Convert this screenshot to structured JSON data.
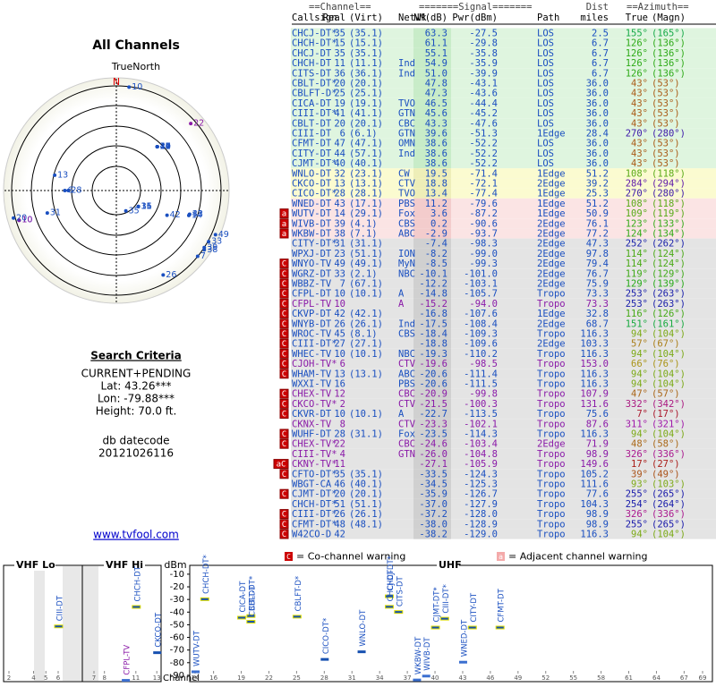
{
  "left": {
    "title": "All Channels",
    "compass": "TrueNorth",
    "north": "N",
    "criteria_title": "Search Criteria",
    "criteria": [
      "CURRENT+PENDING",
      "Lat: 43.26***",
      "Lon: -79.88***",
      "Height: 70.0 ft."
    ],
    "datecode_label": "db datecode",
    "datecode": "20121026116",
    "link": "www.tvfool.com"
  },
  "table": {
    "header_top": [
      "==Channel==",
      "=======Signal=======",
      "Dist",
      "==Azimuth=="
    ],
    "header": [
      "Callsign",
      "Real",
      "(Virt)",
      "Netwk",
      "NM(dB)",
      "Pwr(dBm)",
      "Path",
      "miles",
      "True",
      "(Magn)"
    ],
    "rows": [
      {
        "cells": [
          "CHCJ-DT*",
          "35",
          "(35.1)",
          "",
          "63.3",
          "-27.5",
          "LOS",
          "2.5",
          "155°",
          "(165°)"
        ],
        "zone": "green",
        "analog": false,
        "warn": ""
      },
      {
        "cells": [
          "CHCH-DT*",
          "15",
          "(15.1)",
          "",
          "61.1",
          "-29.8",
          "LOS",
          "6.7",
          "126°",
          "(136°)"
        ],
        "zone": "green",
        "analog": false,
        "warn": ""
      },
      {
        "cells": [
          "CHCJ-DT",
          "35",
          "(35.1)",
          "",
          "55.1",
          "-35.8",
          "LOS",
          "6.7",
          "126°",
          "(136°)"
        ],
        "zone": "green",
        "analog": false,
        "warn": ""
      },
      {
        "cells": [
          "CHCH-DT",
          "11",
          "(11.1)",
          "Ind",
          "54.9",
          "-35.9",
          "LOS",
          "6.7",
          "126°",
          "(136°)"
        ],
        "zone": "green",
        "analog": false,
        "warn": ""
      },
      {
        "cells": [
          "CITS-DT",
          "36",
          "(36.1)",
          "Ind",
          "51.0",
          "-39.9",
          "LOS",
          "6.7",
          "126°",
          "(136°)"
        ],
        "zone": "green",
        "analog": false,
        "warn": ""
      },
      {
        "cells": [
          "CBLT-DT*",
          "20",
          "(20.1)",
          "",
          "47.8",
          "-43.1",
          "LOS",
          "36.0",
          "43°",
          "(53°)"
        ],
        "zone": "green",
        "analog": false,
        "warn": ""
      },
      {
        "cells": [
          "CBLFT-D*",
          "25",
          "(25.1)",
          "",
          "47.3",
          "-43.6",
          "LOS",
          "36.0",
          "43°",
          "(53°)"
        ],
        "zone": "green",
        "analog": false,
        "warn": ""
      },
      {
        "cells": [
          "CICA-DT",
          "19",
          "(19.1)",
          "TVO",
          "46.5",
          "-44.4",
          "LOS",
          "36.0",
          "43°",
          "(53°)"
        ],
        "zone": "green",
        "analog": false,
        "warn": ""
      },
      {
        "cells": [
          "CIII-DT*",
          "41",
          "(41.1)",
          "GTN",
          "45.6",
          "-45.2",
          "LOS",
          "36.0",
          "43°",
          "(53°)"
        ],
        "zone": "green",
        "analog": false,
        "warn": ""
      },
      {
        "cells": [
          "CBLT-DT",
          "20",
          "(20.1)",
          "CBC",
          "43.3",
          "-47.6",
          "LOS",
          "36.0",
          "43°",
          "(53°)"
        ],
        "zone": "green",
        "analog": false,
        "warn": ""
      },
      {
        "cells": [
          "CIII-DT",
          "6",
          "(6.1)",
          "GTN",
          "39.6",
          "-51.3",
          "1Edge",
          "28.4",
          "270°",
          "(280°)"
        ],
        "zone": "green",
        "analog": false,
        "warn": ""
      },
      {
        "cells": [
          "CFMT-DT",
          "47",
          "(47.1)",
          "OMN",
          "38.6",
          "-52.2",
          "LOS",
          "36.0",
          "43°",
          "(53°)"
        ],
        "zone": "green",
        "analog": false,
        "warn": ""
      },
      {
        "cells": [
          "CITY-DT",
          "44",
          "(57.1)",
          "Ind",
          "38.6",
          "-52.2",
          "LOS",
          "36.0",
          "43°",
          "(53°)"
        ],
        "zone": "green",
        "analog": false,
        "warn": ""
      },
      {
        "cells": [
          "CJMT-DT*",
          "40",
          "(40.1)",
          "",
          "38.6",
          "-52.2",
          "LOS",
          "36.0",
          "43°",
          "(53°)"
        ],
        "zone": "green",
        "analog": false,
        "warn": ""
      },
      {
        "cells": [
          "WNLO-DT",
          "32",
          "(23.1)",
          "CW",
          "19.5",
          "-71.4",
          "1Edge",
          "51.2",
          "108°",
          "(118°)"
        ],
        "zone": "yellow",
        "analog": false,
        "warn": ""
      },
      {
        "cells": [
          "CKCO-DT",
          "13",
          "(13.1)",
          "CTV",
          "18.8",
          "-72.1",
          "2Edge",
          "39.2",
          "284°",
          "(294°)"
        ],
        "zone": "yellow",
        "analog": false,
        "warn": ""
      },
      {
        "cells": [
          "CICO-DT*",
          "28",
          "(28.1)",
          "TVO",
          "13.4",
          "-77.4",
          "1Edge",
          "25.3",
          "270°",
          "(280°)"
        ],
        "zone": "yellow",
        "analog": false,
        "warn": ""
      },
      {
        "cells": [
          "WNED-DT",
          "43",
          "(17.1)",
          "PBS",
          "11.2",
          "-79.6",
          "1Edge",
          "51.2",
          "108°",
          "(118°)"
        ],
        "zone": "pink",
        "analog": false,
        "warn": ""
      },
      {
        "cells": [
          "WUTV-DT",
          "14",
          "(29.1)",
          "Fox",
          "3.6",
          "-87.2",
          "1Edge",
          "50.9",
          "109°",
          "(119°)"
        ],
        "zone": "pink",
        "analog": false,
        "warn": "a"
      },
      {
        "cells": [
          "WIVB-DT",
          "39",
          "(4.1)",
          "CBS",
          "0.2",
          "-90.6",
          "2Edge",
          "76.1",
          "123°",
          "(133°)"
        ],
        "zone": "pink",
        "analog": false,
        "warn": "a"
      },
      {
        "cells": [
          "WKBW-DT",
          "38",
          "(7.1)",
          "ABC",
          "-2.9",
          "-93.7",
          "2Edge",
          "77.2",
          "124°",
          "(134°)"
        ],
        "zone": "pink",
        "analog": false,
        "warn": "a"
      },
      {
        "cells": [
          "CITY-DT*",
          "31",
          "(31.1)",
          "",
          "-7.4",
          "-98.3",
          "2Edge",
          "47.3",
          "252°",
          "(262°)"
        ],
        "zone": "gray",
        "analog": false,
        "warn": ""
      },
      {
        "cells": [
          "WPXJ-DT",
          "23",
          "(51.1)",
          "ION",
          "-8.2",
          "-99.0",
          "2Edge",
          "97.8",
          "114°",
          "(124°)"
        ],
        "zone": "gray",
        "analog": false,
        "warn": ""
      },
      {
        "cells": [
          "WNYO-TV",
          "49",
          "(49.1)",
          "MyN",
          "-8.5",
          "-99.3",
          "2Edge",
          "79.4",
          "114°",
          "(124°)"
        ],
        "zone": "gray",
        "analog": false,
        "warn": "C"
      },
      {
        "cells": [
          "WGRZ-DT",
          "33",
          "(2.1)",
          "NBC",
          "-10.1",
          "-101.0",
          "2Edge",
          "76.7",
          "119°",
          "(129°)"
        ],
        "zone": "gray",
        "analog": false,
        "warn": "C"
      },
      {
        "cells": [
          "WBBZ-TV",
          "7",
          "(67.1)",
          "",
          "-12.2",
          "-103.1",
          "2Edge",
          "75.9",
          "129°",
          "(139°)"
        ],
        "zone": "gray",
        "analog": false,
        "warn": "C"
      },
      {
        "cells": [
          "CFPL-DT",
          "10",
          "(10.1)",
          "A",
          "-14.8",
          "-105.7",
          "Tropo",
          "73.3",
          "253°",
          "(263°)"
        ],
        "zone": "gray",
        "analog": false,
        "warn": "C"
      },
      {
        "cells": [
          "CFPL-TV",
          "10",
          "",
          "A",
          "-15.2",
          "-94.0",
          "Tropo",
          "73.3",
          "253°",
          "(263°)"
        ],
        "zone": "gray",
        "analog": true,
        "warn": "C"
      },
      {
        "cells": [
          "CKVP-DT",
          "42",
          "(42.1)",
          "",
          "-16.8",
          "-107.6",
          "1Edge",
          "32.8",
          "116°",
          "(126°)"
        ],
        "zone": "gray",
        "analog": false,
        "warn": "C"
      },
      {
        "cells": [
          "WNYB-DT",
          "26",
          "(26.1)",
          "Ind",
          "-17.5",
          "-108.4",
          "2Edge",
          "68.7",
          "151°",
          "(161°)"
        ],
        "zone": "gray",
        "analog": false,
        "warn": "C"
      },
      {
        "cells": [
          "WROC-TV",
          "45",
          "(8.1)",
          "CBS",
          "-18.4",
          "-109.3",
          "Tropo",
          "116.3",
          "94°",
          "(104°)"
        ],
        "zone": "gray",
        "analog": false,
        "warn": "C"
      },
      {
        "cells": [
          "CIII-DT*",
          "27",
          "(27.1)",
          "",
          "-18.8",
          "-109.6",
          "2Edge",
          "103.3",
          "57°",
          "(67°)"
        ],
        "zone": "gray",
        "analog": false,
        "warn": "C"
      },
      {
        "cells": [
          "WHEC-TV",
          "10",
          "(10.1)",
          "NBC",
          "-19.3",
          "-110.2",
          "Tropo",
          "116.3",
          "94°",
          "(104°)"
        ],
        "zone": "gray",
        "analog": false,
        "warn": "C"
      },
      {
        "cells": [
          "CJOH-TV*",
          "6",
          "",
          "CTV",
          "-19.6",
          "-98.5",
          "Tropo",
          "153.0",
          "66°",
          "(76°)"
        ],
        "zone": "gray",
        "analog": true,
        "warn": "C"
      },
      {
        "cells": [
          "WHAM-TV",
          "13",
          "(13.1)",
          "ABC",
          "-20.6",
          "-111.4",
          "Tropo",
          "116.3",
          "94°",
          "(104°)"
        ],
        "zone": "gray",
        "analog": false,
        "warn": "C"
      },
      {
        "cells": [
          "WXXI-TV",
          "16",
          "",
          "PBS",
          "-20.6",
          "-111.5",
          "Tropo",
          "116.3",
          "94°",
          "(104°)"
        ],
        "zone": "gray",
        "analog": false,
        "warn": ""
      },
      {
        "cells": [
          "CHEX-TV",
          "12",
          "",
          "CBC",
          "-20.9",
          "-99.8",
          "Tropo",
          "107.9",
          "47°",
          "(57°)"
        ],
        "zone": "gray",
        "analog": true,
        "warn": "C"
      },
      {
        "cells": [
          "CKCO-TV*",
          "2",
          "",
          "CTV",
          "-21.5",
          "-100.3",
          "Tropo",
          "131.6",
          "332°",
          "(342°)"
        ],
        "zone": "gray",
        "analog": true,
        "warn": "C"
      },
      {
        "cells": [
          "CKVR-DT",
          "10",
          "(10.1)",
          "A",
          "-22.7",
          "-113.5",
          "Tropo",
          "75.6",
          "7°",
          "(17°)"
        ],
        "zone": "gray",
        "analog": false,
        "warn": "C"
      },
      {
        "cells": [
          "CKNX-TV",
          "8",
          "",
          "CTV",
          "-23.3",
          "-102.1",
          "Tropo",
          "87.6",
          "311°",
          "(321°)"
        ],
        "zone": "gray",
        "analog": true,
        "warn": ""
      },
      {
        "cells": [
          "WUHF-DT",
          "28",
          "(31.1)",
          "Fox",
          "-23.5",
          "-114.3",
          "Tropo",
          "116.3",
          "94°",
          "(104°)"
        ],
        "zone": "gray",
        "analog": false,
        "warn": "C"
      },
      {
        "cells": [
          "CHEX-TV*",
          "22",
          "",
          "CBC",
          "-24.6",
          "-103.4",
          "2Edge",
          "71.9",
          "48°",
          "(58°)"
        ],
        "zone": "gray",
        "analog": true,
        "warn": "C"
      },
      {
        "cells": [
          "CIII-TV*",
          "4",
          "",
          "GTN",
          "-26.0",
          "-104.8",
          "Tropo",
          "98.9",
          "326°",
          "(336°)"
        ],
        "zone": "gray",
        "analog": true,
        "warn": ""
      },
      {
        "cells": [
          "CKNY-TV*",
          "11",
          "",
          "",
          "-27.1",
          "-105.9",
          "Tropo",
          "149.6",
          "17°",
          "(27°)"
        ],
        "zone": "gray",
        "analog": true,
        "warn": "aC"
      },
      {
        "cells": [
          "CFTO-DT*",
          "35",
          "(35.1)",
          "",
          "-33.5",
          "-124.3",
          "Tropo",
          "105.2",
          "39°",
          "(49°)"
        ],
        "zone": "gray",
        "analog": false,
        "warn": "C"
      },
      {
        "cells": [
          "WBGT-CA",
          "46",
          "(40.1)",
          "",
          "-34.5",
          "-125.3",
          "Tropo",
          "111.6",
          "93°",
          "(103°)"
        ],
        "zone": "gray",
        "analog": false,
        "warn": ""
      },
      {
        "cells": [
          "CJMT-DT*",
          "20",
          "(20.1)",
          "",
          "-35.9",
          "-126.7",
          "Tropo",
          "77.6",
          "255°",
          "(265°)"
        ],
        "zone": "gray",
        "analog": false,
        "warn": "C"
      },
      {
        "cells": [
          "CHCH-DT*",
          "51",
          "(51.1)",
          "",
          "-37.0",
          "-127.9",
          "Tropo",
          "104.3",
          "254°",
          "(264°)"
        ],
        "zone": "gray",
        "analog": false,
        "warn": ""
      },
      {
        "cells": [
          "CIII-DT*",
          "26",
          "(26.1)",
          "",
          "-37.2",
          "-128.0",
          "Tropo",
          "98.9",
          "326°",
          "(336°)"
        ],
        "zone": "gray",
        "analog": false,
        "warn": "C"
      },
      {
        "cells": [
          "CFMT-DT*",
          "48",
          "(48.1)",
          "",
          "-38.0",
          "-128.9",
          "Tropo",
          "98.9",
          "255°",
          "(265°)"
        ],
        "zone": "gray",
        "analog": false,
        "warn": "C"
      },
      {
        "cells": [
          "W42CO-D",
          "42",
          "",
          "",
          "-38.2",
          "-129.0",
          "Tropo",
          "116.3",
          "94°",
          "(104°)"
        ],
        "zone": "gray",
        "analog": false,
        "warn": "C"
      }
    ]
  },
  "spectrum": {
    "bands": [
      "VHF Lo",
      "VHF Hi",
      "UHF"
    ],
    "y_label": "dBm",
    "x_label": "Channel",
    "ylim": [
      -3,
      -95
    ],
    "yticks": [
      -10,
      -20,
      -30,
      -40,
      -50,
      -60,
      -70,
      -80,
      -90
    ],
    "vhf_ticks": [
      2,
      4,
      5,
      6,
      7,
      8,
      11,
      13
    ],
    "uhf_ticks": [
      14,
      16,
      19,
      22,
      25,
      28,
      31,
      34,
      37,
      40,
      43,
      46,
      49,
      52,
      55,
      58,
      61,
      64,
      67,
      69
    ],
    "legend": [
      {
        "mark": "C",
        "text": "= Co-channel warning"
      },
      {
        "mark": "a",
        "text": "= Adjacent channel warning"
      }
    ]
  }
}
